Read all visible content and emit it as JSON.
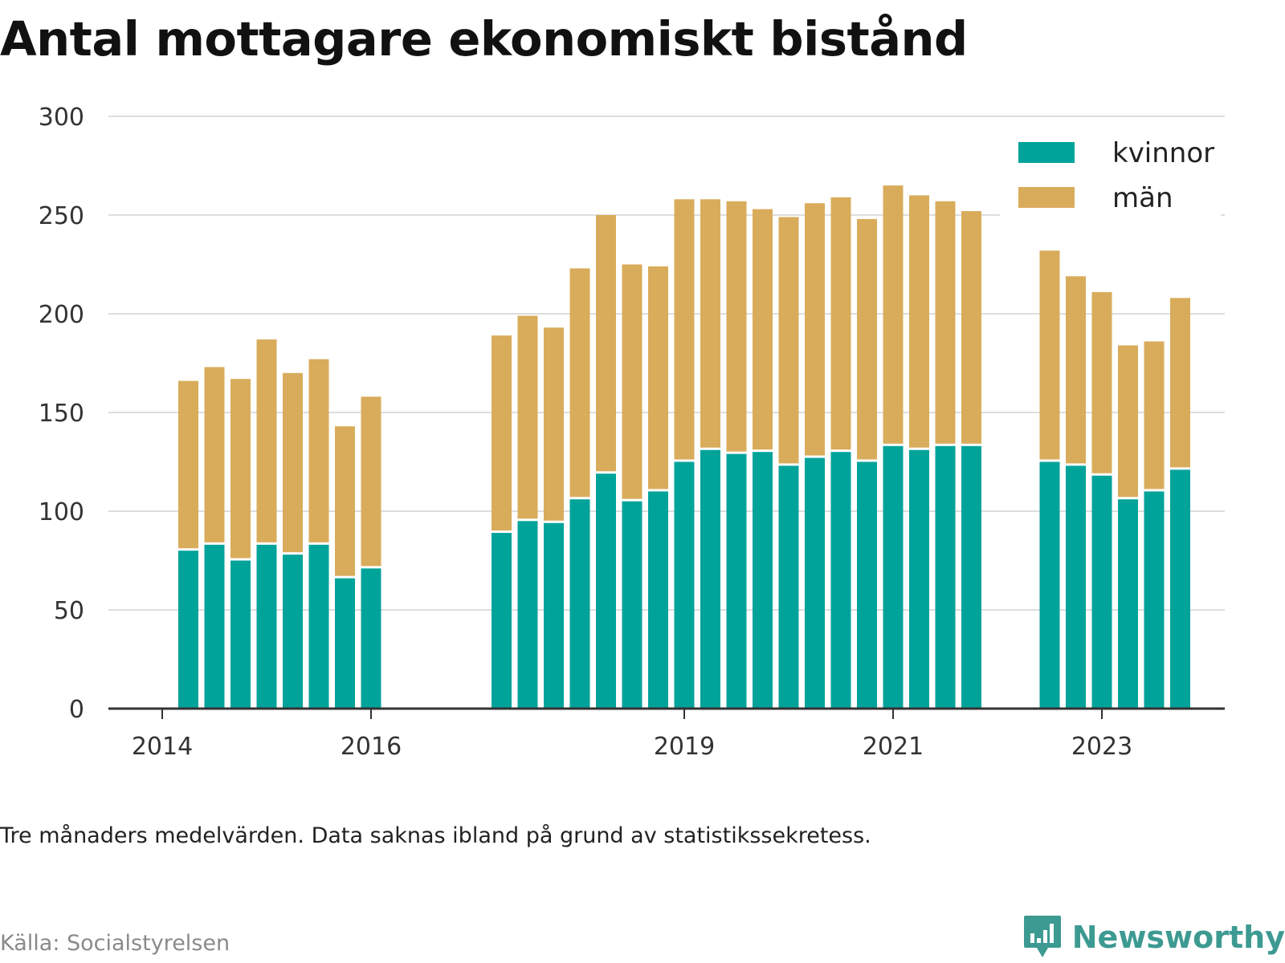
{
  "title": "Antal mottagare ekonomiskt bistånd",
  "note": "Tre månaders medelvärden. Data saknas ibland på grund av statistikssekretess.",
  "source": "Källa: Socialstyrelsen",
  "brand": "Newsworthy",
  "colors": {
    "kvinnor": "#00a39a",
    "man": "#d9ac5b",
    "grid": "#dddddd",
    "axis": "#333333",
    "brand": "#3d9a92"
  },
  "chart_data": {
    "type": "bar",
    "stacked": true,
    "ylim": [
      0,
      300
    ],
    "yticks": [
      0,
      50,
      100,
      150,
      200,
      250,
      300
    ],
    "xticks": [
      {
        "label": "2014",
        "t": 2014.0
      },
      {
        "label": "2016",
        "t": 2016.0
      },
      {
        "label": "2019",
        "t": 2019.0
      },
      {
        "label": "2021",
        "t": 2021.0
      },
      {
        "label": "2023",
        "t": 2023.0
      }
    ],
    "legend": {
      "position": "top-right",
      "entries": [
        "kvinnor",
        "män"
      ]
    },
    "grid": true,
    "series": [
      {
        "name": "kvinnor",
        "color": "#00a39a"
      },
      {
        "name": "män",
        "color": "#d9ac5b"
      }
    ],
    "periods": [
      {
        "t": 2014.25,
        "kvinnor": 80,
        "man": 86
      },
      {
        "t": 2014.5,
        "kvinnor": 83,
        "man": 90
      },
      {
        "t": 2014.75,
        "kvinnor": 75,
        "man": 92
      },
      {
        "t": 2015.0,
        "kvinnor": 83,
        "man": 104
      },
      {
        "t": 2015.25,
        "kvinnor": 78,
        "man": 92
      },
      {
        "t": 2015.5,
        "kvinnor": 83,
        "man": 94
      },
      {
        "t": 2015.75,
        "kvinnor": 66,
        "man": 77
      },
      {
        "t": 2016.0,
        "kvinnor": 71,
        "man": 87
      },
      {
        "t": 2017.25,
        "kvinnor": 89,
        "man": 100
      },
      {
        "t": 2017.5,
        "kvinnor": 95,
        "man": 104
      },
      {
        "t": 2017.75,
        "kvinnor": 94,
        "man": 99
      },
      {
        "t": 2018.0,
        "kvinnor": 106,
        "man": 117
      },
      {
        "t": 2018.25,
        "kvinnor": 119,
        "man": 131
      },
      {
        "t": 2018.5,
        "kvinnor": 105,
        "man": 120
      },
      {
        "t": 2018.75,
        "kvinnor": 110,
        "man": 114
      },
      {
        "t": 2019.0,
        "kvinnor": 125,
        "man": 133
      },
      {
        "t": 2019.25,
        "kvinnor": 131,
        "man": 127
      },
      {
        "t": 2019.5,
        "kvinnor": 129,
        "man": 128
      },
      {
        "t": 2019.75,
        "kvinnor": 130,
        "man": 123
      },
      {
        "t": 2020.0,
        "kvinnor": 123,
        "man": 126
      },
      {
        "t": 2020.25,
        "kvinnor": 127,
        "man": 129
      },
      {
        "t": 2020.5,
        "kvinnor": 130,
        "man": 129
      },
      {
        "t": 2020.75,
        "kvinnor": 125,
        "man": 123
      },
      {
        "t": 2021.0,
        "kvinnor": 133,
        "man": 132
      },
      {
        "t": 2021.25,
        "kvinnor": 131,
        "man": 129
      },
      {
        "t": 2021.5,
        "kvinnor": 133,
        "man": 124
      },
      {
        "t": 2021.75,
        "kvinnor": 133,
        "man": 119
      },
      {
        "t": 2022.5,
        "kvinnor": 125,
        "man": 107
      },
      {
        "t": 2022.75,
        "kvinnor": 123,
        "man": 96
      },
      {
        "t": 2023.0,
        "kvinnor": 118,
        "man": 93
      },
      {
        "t": 2023.25,
        "kvinnor": 106,
        "man": 78
      },
      {
        "t": 2023.5,
        "kvinnor": 110,
        "man": 76
      },
      {
        "t": 2023.75,
        "kvinnor": 121,
        "man": 87
      }
    ]
  }
}
